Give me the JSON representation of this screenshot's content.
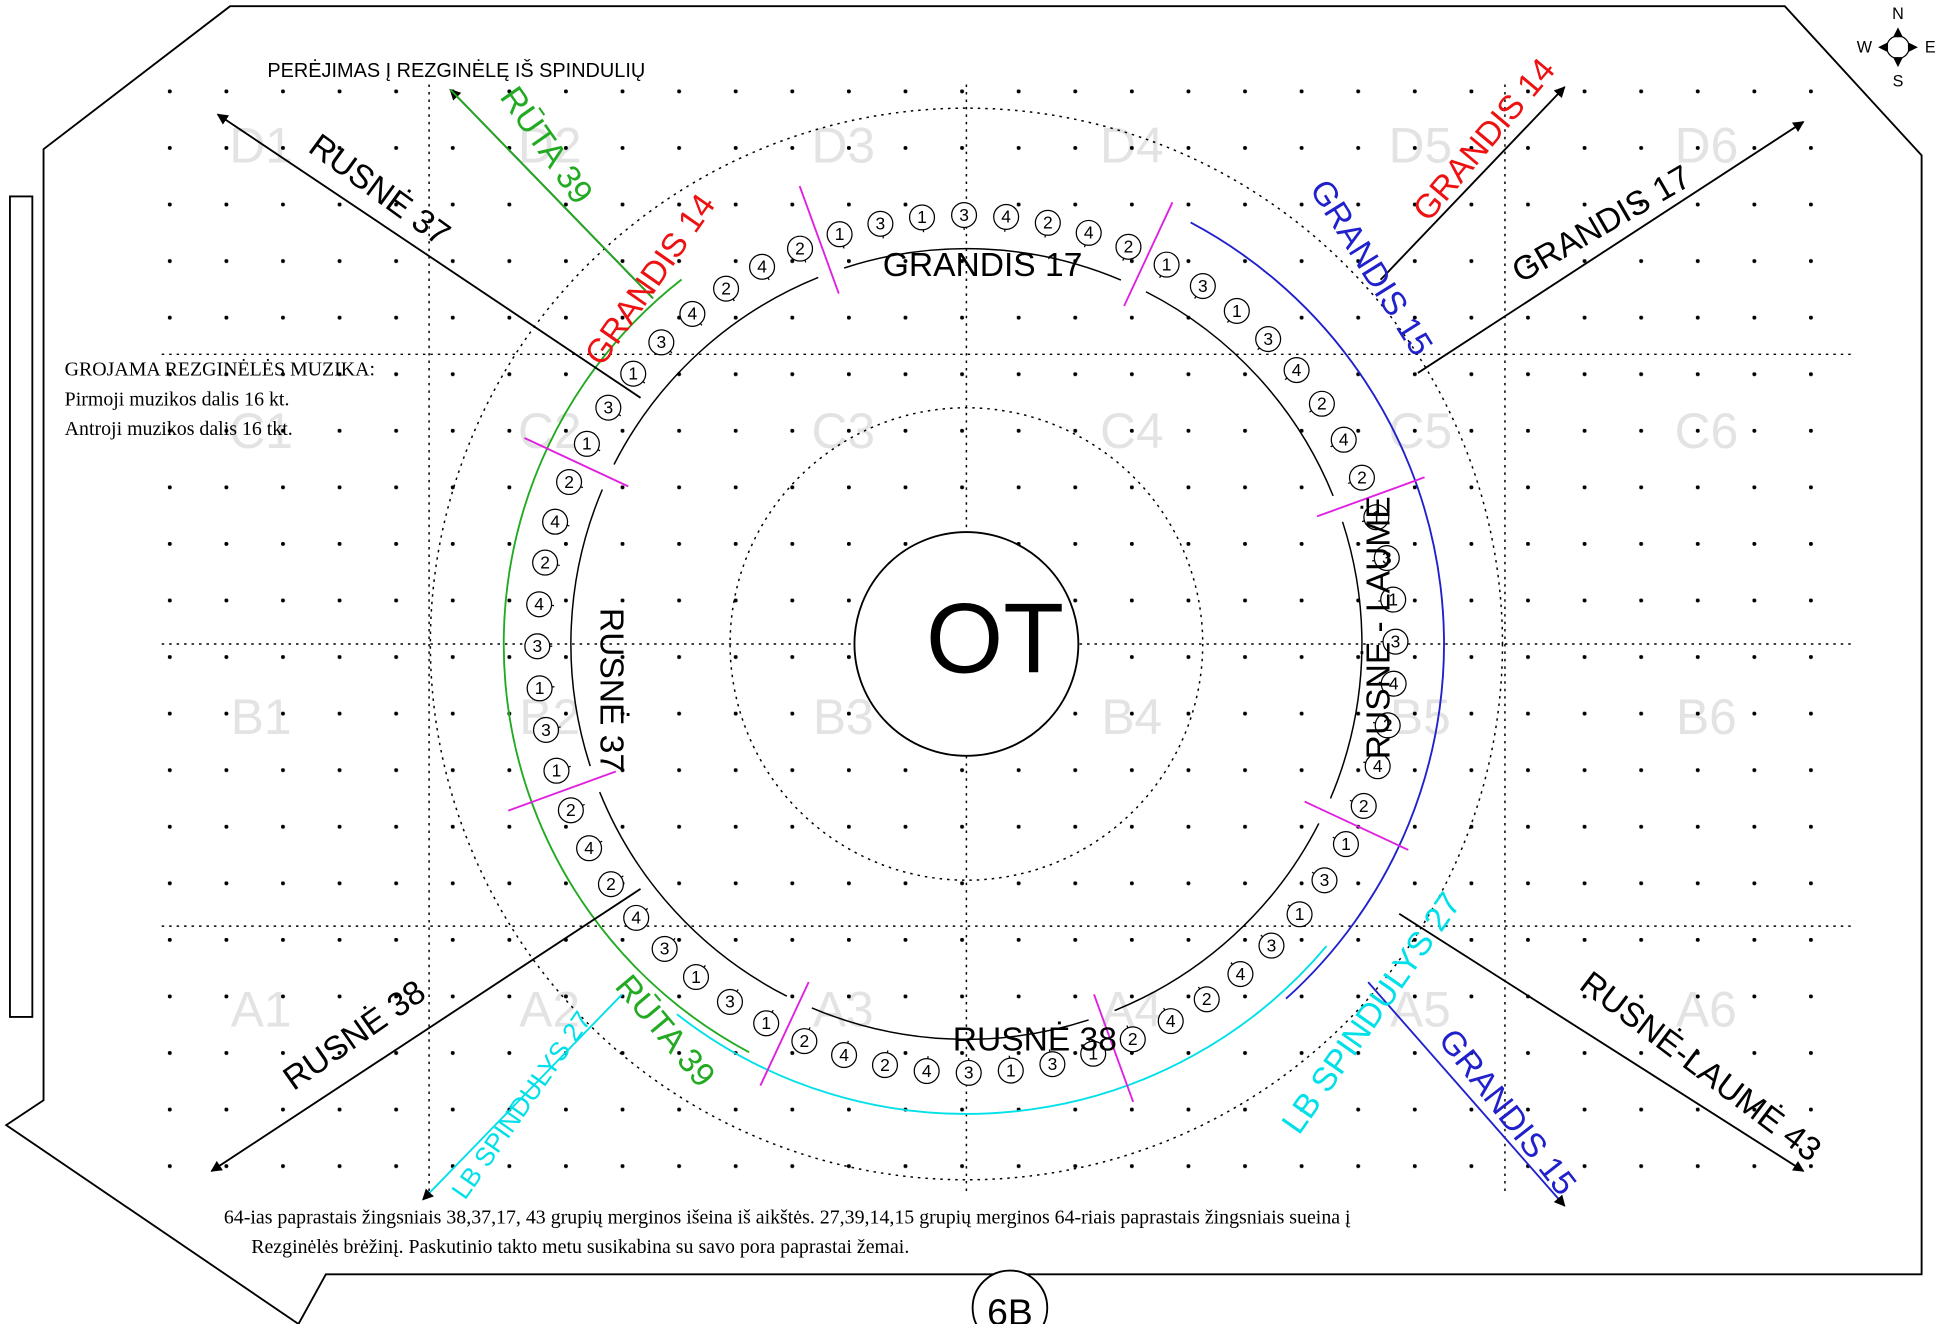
{
  "header": {
    "title": "PERĖJIMAS Į REZGINĖLĘ IŠ SPINDULIŲ"
  },
  "compass": {
    "n": "N",
    "w": "W",
    "e": "E",
    "s": "S"
  },
  "grid_labels": [
    [
      "D1",
      "D2",
      "D3",
      "D4",
      "D5",
      "D6"
    ],
    [
      "C1",
      "C2",
      "C3",
      "C4",
      "C5",
      "C6"
    ],
    [
      "B1",
      "B2",
      "B3",
      "B4",
      "B5",
      "B6"
    ],
    [
      "A1",
      "A2",
      "A3",
      "A4",
      "A5",
      "A6"
    ]
  ],
  "center": "OT",
  "music_note": [
    "GROJAMA REZGINĖLĖS MUZIKA:",
    "Pirmoji muzikos dalis 16 kt.",
    "Antroji muzikos dalis 16 tkt."
  ],
  "groups": [
    "RUSNĖ 37",
    "RŪTA 39",
    "GRANDIS 14",
    "GRANDIS 17",
    "GRANDIS 15",
    "GRANDIS 14",
    "GRANDIS 17",
    "RUSNĖ - LAUMĖ",
    "RUSNĖ 37",
    "RUSNĖ 38",
    "RŪTA 39",
    "LB SPINDULYS 27",
    "RUSNĖ 38",
    "LB SPINDULYS 27",
    "GRANDIS 15",
    "RUSNĖ-LAUMĖ 43"
  ],
  "ring": [
    [
      1,
      3,
      1,
      3,
      4,
      2,
      4,
      2
    ],
    [
      1,
      3,
      1,
      3,
      4,
      2,
      4,
      2
    ],
    [
      1,
      3,
      1,
      3,
      4,
      2,
      4,
      2
    ],
    [
      1,
      3,
      1,
      3,
      4,
      2,
      4,
      2
    ],
    [
      1,
      3,
      1,
      3,
      4,
      2,
      4,
      2
    ],
    [
      1,
      3,
      1,
      3,
      4,
      2,
      4,
      2
    ],
    [
      1,
      3,
      1,
      3,
      4,
      2,
      4,
      2
    ],
    [
      1,
      3,
      1,
      3,
      4,
      2,
      4,
      2
    ]
  ],
  "footer": [
    "64-ias paprastais žingsniais 38,37,17, 43 grupių merginos išeina iš aikštės. 27,39,14,15 grupių merginos 64-riais paprastais žingsniais sueina į",
    "Rezginėlės brėžinį. Paskutinio takto metu susikabina su savo pora paprastai žemai."
  ],
  "page_label": "6B"
}
